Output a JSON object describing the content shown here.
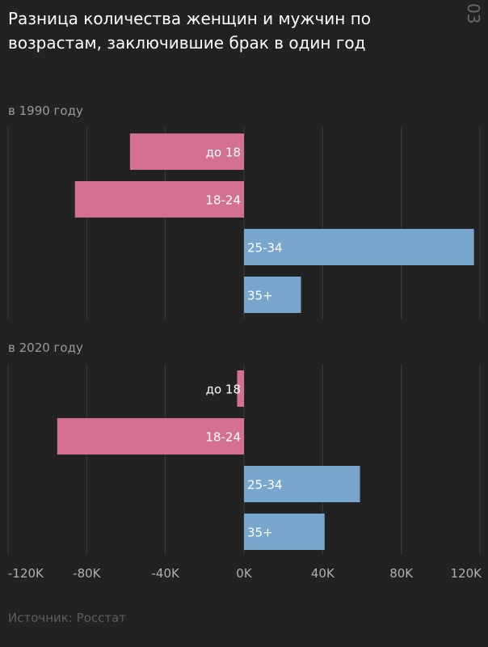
{
  "title": "Разница количества женщин и мужчин по возрастам, заключившие брак в один год",
  "page_number": "03",
  "source": "Источник: Росстат",
  "colors": {
    "negative": "#d47193",
    "positive": "#79a6cc",
    "grid": "#3c3c3c",
    "tick": "#b0b0b0"
  },
  "chart_data": {
    "type": "bar",
    "orientation": "horizontal",
    "xlim": [
      -120000,
      120000
    ],
    "ticks": [
      -120000,
      -80000,
      -40000,
      0,
      40000,
      80000,
      120000
    ],
    "tick_labels": [
      "-120K",
      "-80K",
      "-40K",
      "0K",
      "40K",
      "80K",
      "120K"
    ],
    "panels": [
      {
        "label": "в 1990 году",
        "categories": [
          "до 18",
          "18-24",
          "25-34",
          "35+"
        ],
        "values": [
          -58000,
          -86000,
          117000,
          29000
        ]
      },
      {
        "label": "в 2020 году",
        "categories": [
          "до 18",
          "18-24",
          "25-34",
          "35+"
        ],
        "values": [
          -3500,
          -95000,
          59000,
          41000
        ]
      }
    ]
  }
}
